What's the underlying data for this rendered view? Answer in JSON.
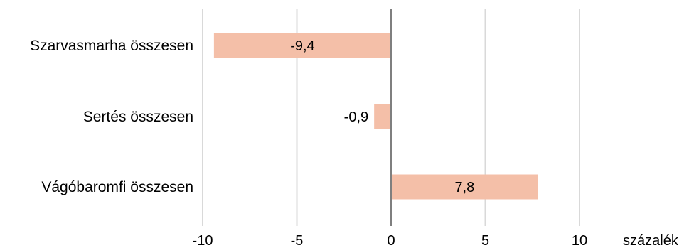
{
  "chart_data": {
    "type": "bar",
    "orientation": "horizontal",
    "categories": [
      "Szarvasmarha összesen",
      "Sertés összesen",
      "Vágóbaromfi összesen"
    ],
    "values": [
      -9.4,
      -0.9,
      7.8
    ],
    "data_labels": [
      "-9,4",
      "-0,9",
      "7,8"
    ],
    "xlim": [
      -10,
      10
    ],
    "ticks": [
      -10,
      -5,
      0,
      5,
      10
    ],
    "tick_labels": [
      "-10",
      "-5",
      "0",
      "5",
      "10"
    ],
    "xlabel": "százalék",
    "grid": true,
    "legend": "none",
    "bar_color": "#f4bfa8",
    "gridline_color": "#d9d9d9",
    "zero_line_color": "#7f7f7f"
  }
}
